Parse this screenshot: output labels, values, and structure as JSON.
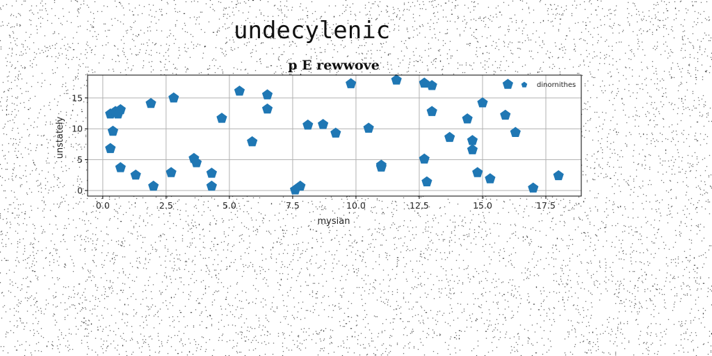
{
  "figure": {
    "suptitle": "undecylenic"
  },
  "chart_data": {
    "type": "scatter",
    "title": "p E rewwove",
    "xlabel": "mysian",
    "ylabel": "unstately",
    "xlim": [
      -0.6,
      18.9
    ],
    "ylim": [
      -0.9,
      18.7
    ],
    "xticks": [
      0.0,
      2.5,
      5.0,
      7.5,
      10.0,
      12.5,
      15.0,
      17.5
    ],
    "xtick_labels": [
      "0.0",
      "2.5",
      "5.0",
      "7.5",
      "10.0",
      "12.5",
      "15.0",
      "17.5"
    ],
    "yticks": [
      0,
      5,
      10,
      15
    ],
    "ytick_labels": [
      "0",
      "5",
      "10",
      "15"
    ],
    "grid": true,
    "legend": {
      "placement": "top-right"
    },
    "marker": "pentagon",
    "color": "#1f77b4",
    "series": [
      {
        "name": "dinornithes",
        "points": [
          [
            0.3,
            12.4
          ],
          [
            0.5,
            12.8
          ],
          [
            0.7,
            13.1
          ],
          [
            0.6,
            12.4
          ],
          [
            0.4,
            9.6
          ],
          [
            0.3,
            6.8
          ],
          [
            0.7,
            3.7
          ],
          [
            1.3,
            2.5
          ],
          [
            1.9,
            14.1
          ],
          [
            2.0,
            0.7
          ],
          [
            2.7,
            2.9
          ],
          [
            2.8,
            15.0
          ],
          [
            3.6,
            5.2
          ],
          [
            3.7,
            4.5
          ],
          [
            4.3,
            0.7
          ],
          [
            4.3,
            2.8
          ],
          [
            4.7,
            11.7
          ],
          [
            5.4,
            16.1
          ],
          [
            5.9,
            7.9
          ],
          [
            6.5,
            15.5
          ],
          [
            6.5,
            13.2
          ],
          [
            7.6,
            0.1
          ],
          [
            7.8,
            0.7
          ],
          [
            8.1,
            10.6
          ],
          [
            8.7,
            10.7
          ],
          [
            9.2,
            9.3
          ],
          [
            9.8,
            17.3
          ],
          [
            10.5,
            10.1
          ],
          [
            11.0,
            4.1
          ],
          [
            11.0,
            3.8
          ],
          [
            11.6,
            17.9
          ],
          [
            12.7,
            17.4
          ],
          [
            12.7,
            5.1
          ],
          [
            12.8,
            1.4
          ],
          [
            13.0,
            17.0
          ],
          [
            13.0,
            12.8
          ],
          [
            13.7,
            8.6
          ],
          [
            14.4,
            11.6
          ],
          [
            14.6,
            8.1
          ],
          [
            14.6,
            6.6
          ],
          [
            14.8,
            2.9
          ],
          [
            15.0,
            14.2
          ],
          [
            15.3,
            1.9
          ],
          [
            15.9,
            12.2
          ],
          [
            16.0,
            17.2
          ],
          [
            16.3,
            9.4
          ],
          [
            17.0,
            0.4
          ],
          [
            18.0,
            2.4
          ]
        ]
      }
    ]
  }
}
